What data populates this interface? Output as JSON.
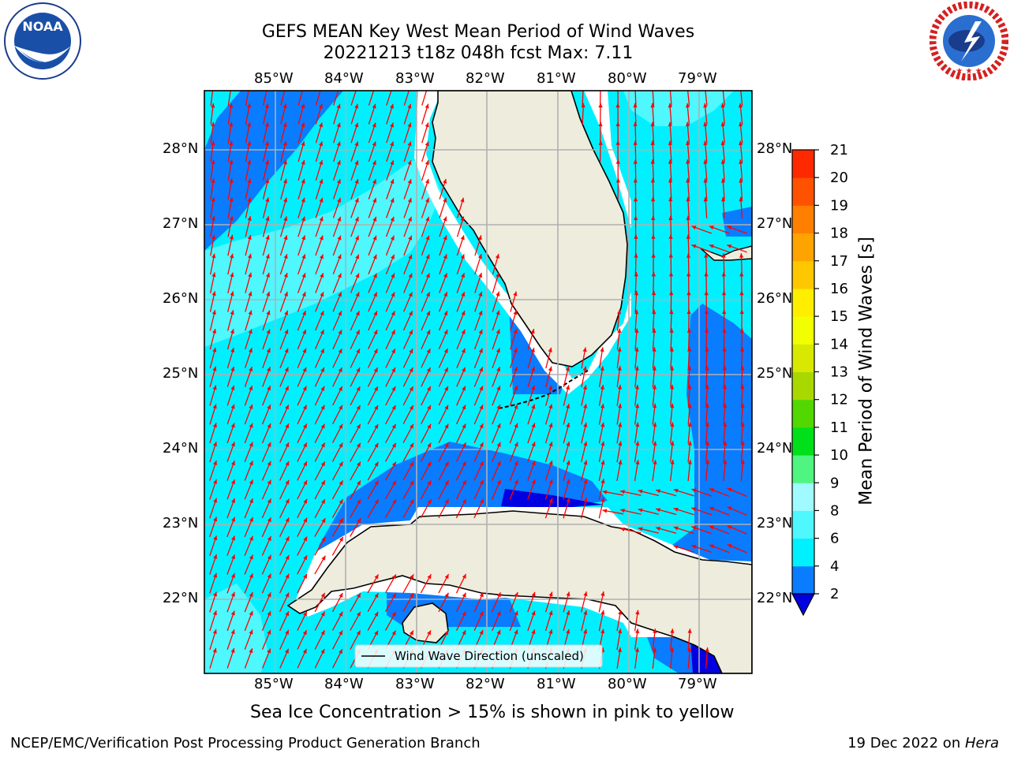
{
  "header": {
    "title_line1": "GEFS MEAN Key West Mean Period of Wind Waves",
    "title_line2": "20221213 t18z 048h fcst   Max: 7.11"
  },
  "logos": {
    "noaa_text": "NOAA",
    "noaa_ring": "NATIONAL OCEANIC AND ATMOSPHERIC ADMINISTRATION · U.S. DEPARTMENT OF COMMERCE",
    "nws_ring": "NATIONAL WEATHER SERVICE"
  },
  "map": {
    "lon_labels": [
      "85°W",
      "84°W",
      "83°W",
      "82°W",
      "81°W",
      "80°W",
      "79°W"
    ],
    "lat_labels": [
      "28°N",
      "27°N",
      "26°N",
      "25°N",
      "24°N",
      "23°N",
      "22°N"
    ],
    "legend_label": "Wind Wave Direction (unscaled)",
    "colors": {
      "land": "#eeecdd",
      "arrow": "#ff0000",
      "grid": "#b0b0b0",
      "band_2_4": "#0a7cff",
      "band_4_6": "#00f0ff",
      "band_6_8": "#4ff7ff",
      "below_2": "#0000e0"
    }
  },
  "colorbar": {
    "label": "Mean Period of Wind Waves [s]",
    "ticks": [
      "2",
      "4",
      "6",
      "8",
      "9",
      "10",
      "11",
      "12",
      "13",
      "14",
      "15",
      "16",
      "17",
      "18",
      "19",
      "20",
      "21"
    ],
    "colors": [
      "#0a7cff",
      "#00f0ff",
      "#4ff7ff",
      "#9ffbff",
      "#4ff580",
      "#00e01a",
      "#52d800",
      "#a8d800",
      "#d8e800",
      "#f2ff00",
      "#ffee00",
      "#ffc700",
      "#ffa300",
      "#ff7f00",
      "#ff5200",
      "#ff2900"
    ],
    "under_color": "#0000e0"
  },
  "notes": {
    "sea_ice": "Sea Ice Concentration > 15% is shown in pink to yellow"
  },
  "footer": {
    "left": "NCEP/EMC/Verification Post Processing Product Generation Branch",
    "right_prefix": "19 Dec 2022 on ",
    "right_host": "Hera"
  }
}
